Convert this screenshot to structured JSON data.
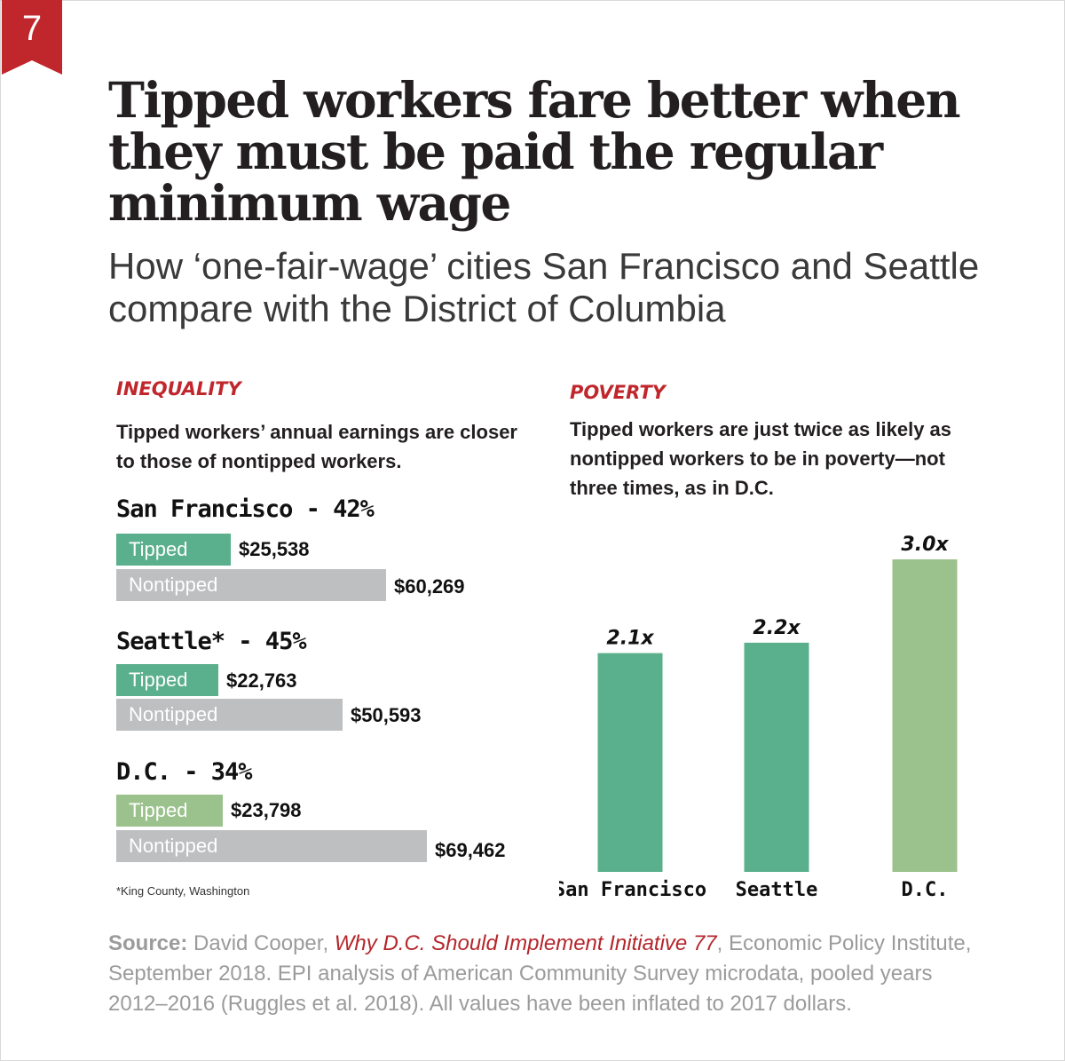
{
  "badge": {
    "number": "7"
  },
  "title": "Tipped workers fare better when they must be paid the regular minimum wage",
  "subtitle": "How ‘one-fair-wage’ cities San Francisco and Seattle compare with the District of Columbia",
  "inequality": {
    "label": "INEQUALITY",
    "description": "Tipped workers’ annual earnings are closer to those of nontipped workers."
  },
  "poverty": {
    "label": "POVERTY",
    "description": "Tipped workers are just twice as likely as nontipped workers to be in poverty—not three times, as in D.C."
  },
  "footnote": "*King County, Washington",
  "source": {
    "label": "Source:",
    "pre": " David Cooper, ",
    "link": "Why D.C. Should Implement Initiative 77",
    "post": ", Economic Policy Institute, September 2018. EPI analysis of American Community Survey microdata, pooled years 2012–2016 (Ruggles et al. 2018). All values have been inflated to 2017 dollars."
  },
  "colors": {
    "accent": "#c0272d",
    "tipped": "#5aaf8c",
    "tipped_dc": "#9bc18c",
    "nontipped": "#bebfc1"
  },
  "chart_data": [
    {
      "type": "bar",
      "orientation": "horizontal",
      "groups": [
        {
          "heading": "San Francisco - 42%",
          "tipped_label": "Tipped",
          "tipped_value": 25538,
          "tipped_text": "$25,538",
          "nontipped_label": "Nontipped",
          "nontipped_value": 60269,
          "nontipped_text": "$60,269"
        },
        {
          "heading": "Seattle* - 45%",
          "tipped_label": "Tipped",
          "tipped_value": 22763,
          "tipped_text": "$22,763",
          "nontipped_label": "Nontipped",
          "nontipped_value": 50593,
          "nontipped_text": "$50,593"
        },
        {
          "heading": "D.C. - 34%",
          "tipped_label": "Tipped",
          "tipped_value": 23798,
          "tipped_text": "$23,798",
          "nontipped_label": "Nontipped",
          "nontipped_value": 69462,
          "nontipped_text": "$69,462"
        }
      ]
    },
    {
      "type": "bar",
      "categories": [
        "San Francisco",
        "Seattle",
        "D.C."
      ],
      "values": [
        2.1,
        2.2,
        3.0
      ],
      "value_labels": [
        "2.1x",
        "2.2x",
        "3.0x"
      ],
      "ylim": [
        0,
        3.0
      ],
      "grid": false
    }
  ]
}
